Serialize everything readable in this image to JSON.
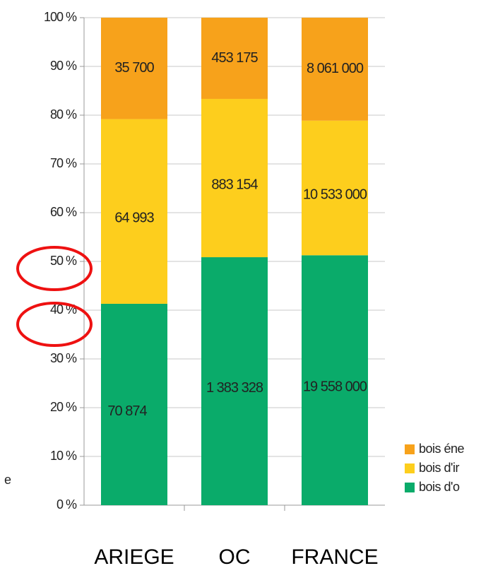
{
  "chart_data": {
    "type": "bar",
    "stacking": "percent",
    "categories": [
      "ARIEGE",
      "OC",
      "FRANCE"
    ],
    "series": [
      {
        "name": "bois d'o",
        "color": "#0aab6a",
        "values": [
          70874,
          1383328,
          19558000
        ],
        "value_labels": [
          "70 874",
          "1 383 328",
          "19 558 000"
        ]
      },
      {
        "name": "bois d'ir",
        "color": "#fdce1d",
        "values": [
          64993,
          883154,
          10533000
        ],
        "value_labels": [
          "64 993",
          "883 154",
          "10 533 000"
        ]
      },
      {
        "name": "bois éne",
        "color": "#f7a21b",
        "values": [
          35700,
          453175,
          8061000
        ],
        "value_labels": [
          "35 700",
          "453 175",
          "8 061 000"
        ]
      }
    ],
    "ylim": [
      0,
      100
    ],
    "yticks": [
      {
        "value": 0,
        "label": "0 %"
      },
      {
        "value": 10,
        "label": "10 %"
      },
      {
        "value": 20,
        "label": "20 %"
      },
      {
        "value": 30,
        "label": "30 %"
      },
      {
        "value": 40,
        "label": "40 %"
      },
      {
        "value": 50,
        "label": "50 %"
      },
      {
        "value": 60,
        "label": "60 %"
      },
      {
        "value": 70,
        "label": "70 %"
      },
      {
        "value": 80,
        "label": "80 %"
      },
      {
        "value": 90,
        "label": "90 %"
      },
      {
        "value": 100,
        "label": "100 %"
      }
    ],
    "grid": true,
    "legend": "right",
    "side_text": "e"
  }
}
